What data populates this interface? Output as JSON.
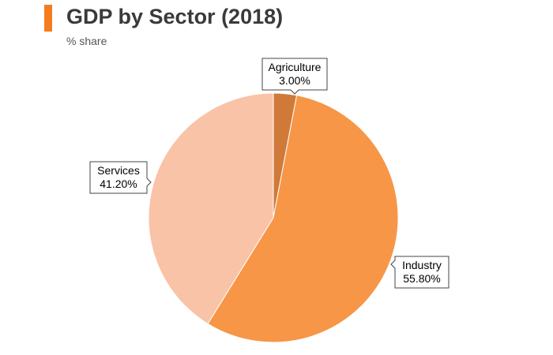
{
  "header": {
    "title": "GDP by Sector (2018)",
    "subtitle": "% share",
    "accent_color": "#f47b20"
  },
  "chart_data": {
    "type": "pie",
    "title": "GDP by Sector (2018)",
    "subtitle": "% share",
    "start_angle_deg": 0,
    "direction": "clockwise",
    "slices": [
      {
        "name": "Agriculture",
        "value": 3.0,
        "label": "3.00%",
        "color": "#d07a3a"
      },
      {
        "name": "Industry",
        "value": 55.8,
        "label": "55.80%",
        "color": "#f79646"
      },
      {
        "name": "Services",
        "value": 41.2,
        "label": "41.20%",
        "color": "#f9c3a7"
      }
    ]
  }
}
